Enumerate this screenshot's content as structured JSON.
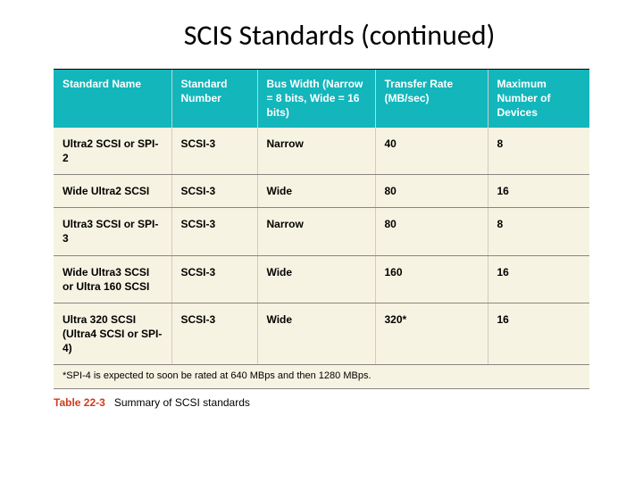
{
  "title": "SCIS Standards (continued)",
  "table": {
    "columns": [
      "Standard Name",
      "Standard Number",
      "Bus Width (Narrow = 8 bits, Wide = 16 bits)",
      "Transfer Rate (MB/sec)",
      "Maximum Number of Devices"
    ],
    "rows": [
      [
        "Ultra2 SCSI or SPI-2",
        "SCSI-3",
        "Narrow",
        "40",
        "8"
      ],
      [
        "Wide Ultra2 SCSI",
        "SCSI-3",
        "Wide",
        "80",
        "16"
      ],
      [
        "Ultra3 SCSI or SPI-3",
        "SCSI-3",
        "Narrow",
        "80",
        "8"
      ],
      [
        "Wide Ultra3 SCSI or Ultra 160 SCSI",
        "SCSI-3",
        "Wide",
        "160",
        "16"
      ],
      [
        "Ultra 320 SCSI (Ultra4 SCSI or SPI-4)",
        "SCSI-3",
        "Wide",
        "320*",
        "16"
      ]
    ],
    "footnote": "*SPI-4 is expected to soon be rated at 640 MBps and then 1280 MBps.",
    "caption_label": "Table 22-3",
    "caption_text": "Summary of SCSI standards",
    "header_bg": "#12b6bb",
    "header_fg": "#ffffff",
    "cell_bg": "#f7f3e2",
    "border_color": "#8a8680",
    "caption_label_color": "#d13a19"
  }
}
